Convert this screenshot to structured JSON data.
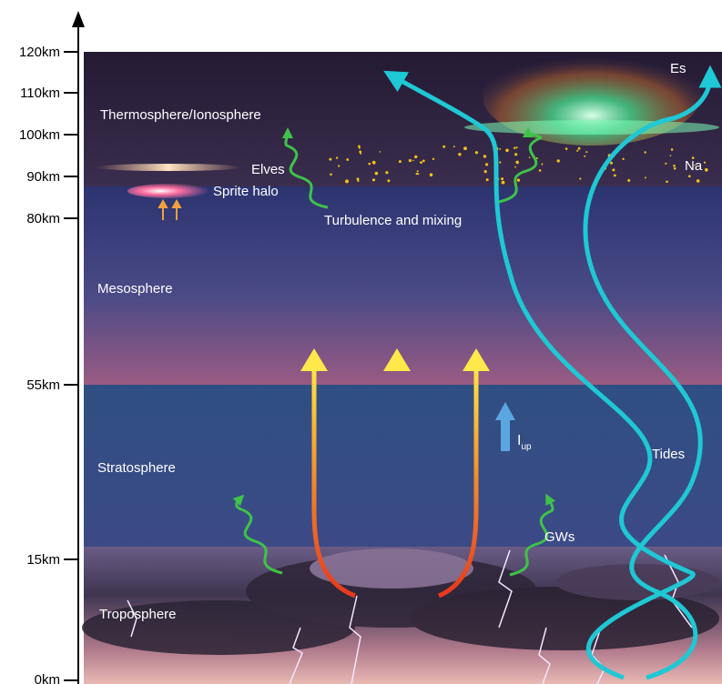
{
  "altitude_axis": {
    "ticks": [
      "120km",
      "110km",
      "100km",
      "90km",
      "80km",
      "55km",
      "15km",
      "0km"
    ]
  },
  "layers": {
    "thermosphere": "Thermosphere/Ionosphere",
    "mesosphere": "Mesosphere",
    "stratosphere": "Stratosphere",
    "troposphere": "Troposphere"
  },
  "phenomena": {
    "elves": "Elves",
    "sprite_halo": "Sprite halo",
    "turbulence": "Turbulence and mixing",
    "es": "Es",
    "na": "Na",
    "current_symbol": "I",
    "current_subscript": "up",
    "gws": "GWs",
    "tides": "Tides"
  },
  "colors": {
    "tide_arrow": "#1ec8d4",
    "gravity_wave": "#3fc24a",
    "up_arrow_top": "#ffe94a",
    "up_arrow_bottom": "#e8381c",
    "current_arrow": "#5aa6e0",
    "sodium_dots": "#f2c21a"
  }
}
